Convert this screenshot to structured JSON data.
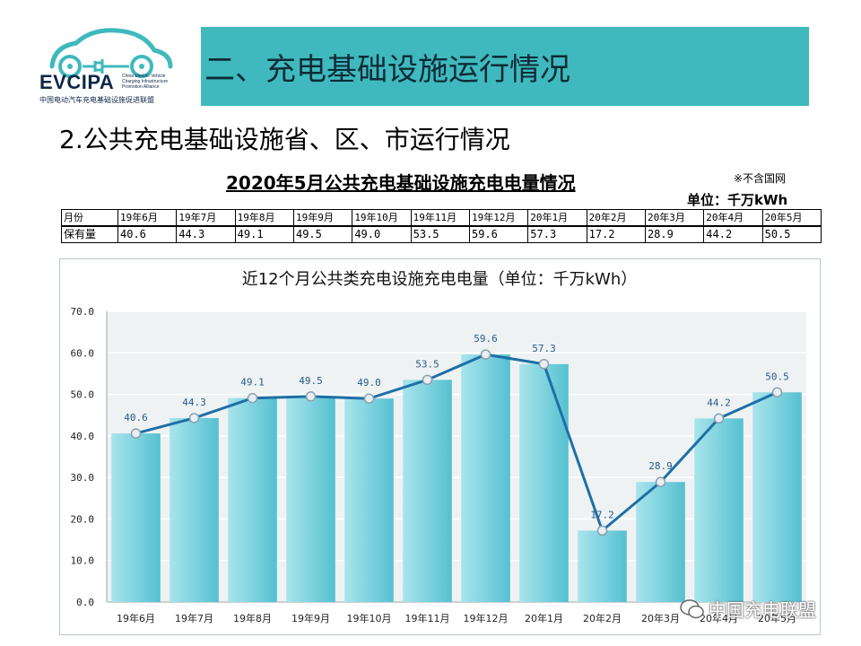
{
  "logo": {
    "name": "EVCIPA",
    "subtitle": "China Electric Vehicle\nCharging Infrastructure\nPromotion Alliance",
    "cn": "中国电动汽车充电基础设施促进联盟"
  },
  "header": {
    "banner_title": "二、充电基础设施运行情况"
  },
  "section": {
    "subtitle": "2.公共充电基础设施省、区、市运行情况"
  },
  "table": {
    "title": "2020年5月公共充电基础设施充电电量情况",
    "note": "※不含国网",
    "unit": "单位：千万kWh",
    "row_headers": [
      "月份",
      "保有量"
    ],
    "months": [
      "19年6月",
      "19年7月",
      "19年8月",
      "19年9月",
      "19年10月",
      "19年11月",
      "19年12月",
      "20年1月",
      "20年2月",
      "20年3月",
      "20年4月",
      "20年5月"
    ],
    "values": [
      "40.6",
      "44.3",
      "49.1",
      "49.5",
      "49.0",
      "53.5",
      "59.6",
      "57.3",
      "17.2",
      "28.9",
      "44.2",
      "50.5"
    ]
  },
  "chart_data": {
    "type": "bar+line",
    "title": "近12个月公共类充电设施充电电量（单位：千万kWh）",
    "categories": [
      "19年6月",
      "19年7月",
      "19年8月",
      "19年9月",
      "19年10月",
      "19年11月",
      "19年12月",
      "20年1月",
      "20年2月",
      "20年3月",
      "20年4月",
      "20年5月"
    ],
    "series": [
      {
        "name": "充电电量",
        "values": [
          40.6,
          44.3,
          49.1,
          49.5,
          49.0,
          53.5,
          59.6,
          57.3,
          17.2,
          28.9,
          44.2,
          50.5
        ]
      }
    ],
    "ylim": [
      0,
      70
    ],
    "yticks": [
      "0.0",
      "10.0",
      "20.0",
      "30.0",
      "40.0",
      "50.0",
      "60.0",
      "70.0"
    ],
    "bar_color": "#7fd3df",
    "line_color": "#1f6fa6",
    "grid": true
  },
  "watermark": {
    "text": "中国充电联盟"
  }
}
